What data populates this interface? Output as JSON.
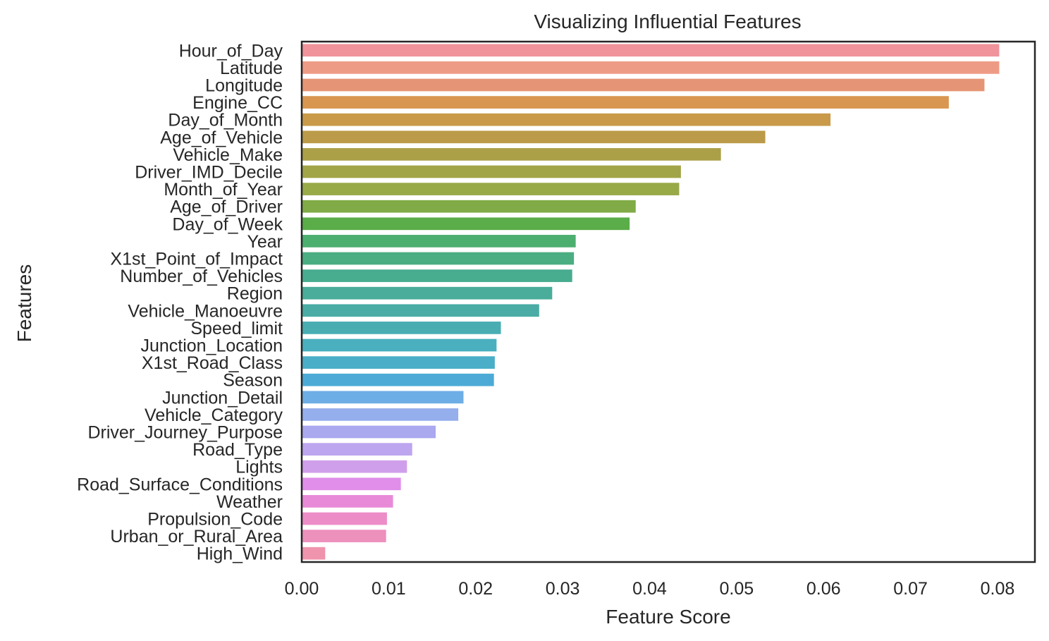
{
  "chart_data": {
    "type": "bar",
    "orientation": "horizontal",
    "title": "Visualizing Influential Features",
    "xlabel": "Feature Score",
    "ylabel": "Features",
    "xlim": [
      0,
      0.0843
    ],
    "xticks": [
      "0.00",
      "0.01",
      "0.02",
      "0.03",
      "0.04",
      "0.05",
      "0.06",
      "0.07",
      "0.08"
    ],
    "grid": false,
    "categories": [
      "Hour_of_Day",
      "Latitude",
      "Longitude",
      "Engine_CC",
      "Day_of_Month",
      "Age_of_Vehicle",
      "Vehicle_Make",
      "Driver_IMD_Decile",
      "Month_of_Year",
      "Age_of_Driver",
      "Day_of_Week",
      "Year",
      "X1st_Point_of_Impact",
      "Number_of_Vehicles",
      "Region",
      "Vehicle_Manoeuvre",
      "Speed_limit",
      "Junction_Location",
      "X1st_Road_Class",
      "Season",
      "Junction_Detail",
      "Vehicle_Category",
      "Driver_Journey_Purpose",
      "Road_Type",
      "Lights",
      "Road_Surface_Conditions",
      "Weather",
      "Propulsion_Code",
      "Urban_or_Rural_Area",
      "High_Wind"
    ],
    "values": [
      0.0802,
      0.0802,
      0.0785,
      0.0744,
      0.0608,
      0.0533,
      0.0482,
      0.0436,
      0.0434,
      0.0384,
      0.0377,
      0.0315,
      0.0313,
      0.0311,
      0.0288,
      0.0273,
      0.0229,
      0.0224,
      0.0222,
      0.0221,
      0.0186,
      0.018,
      0.0154,
      0.0127,
      0.0121,
      0.0114,
      0.0105,
      0.0098,
      0.0097,
      0.0027
    ],
    "colors": [
      "#f0939b",
      "#ee9b86",
      "#e59575",
      "#d99650",
      "#c89a49",
      "#bb9b49",
      "#aba048",
      "#a1a548",
      "#98a948",
      "#80ab46",
      "#5aad48",
      "#4caf70",
      "#4aae82",
      "#48ac8f",
      "#4aac9a",
      "#4aaca5",
      "#49adb2",
      "#4aafbe",
      "#4aaec8",
      "#4daad6",
      "#6eaee6",
      "#95aeec",
      "#aaa8ef",
      "#bda5ef",
      "#d09feb",
      "#e08eea",
      "#e88ad8",
      "#ec8dc8",
      "#ed90bb",
      "#ef94ac"
    ]
  }
}
